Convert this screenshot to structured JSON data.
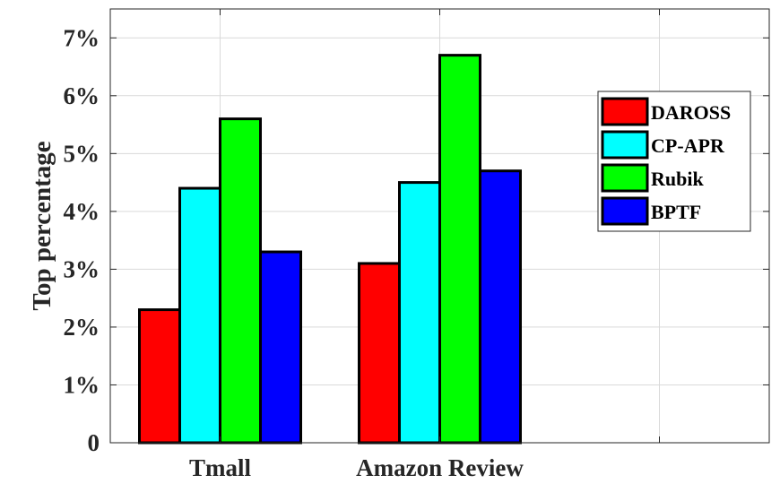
{
  "chart_data": {
    "type": "bar",
    "categories": [
      "Tmall",
      "Amazon Review",
      ""
    ],
    "series": [
      {
        "name": "DAROSS",
        "color": "#ff0000",
        "values": [
          2.3,
          3.1,
          0
        ]
      },
      {
        "name": "CP-APR",
        "color": "#00ffff",
        "values": [
          4.4,
          4.5,
          0
        ]
      },
      {
        "name": "Rubik",
        "color": "#00ff00",
        "values": [
          5.6,
          6.7,
          0
        ]
      },
      {
        "name": "BPTF",
        "color": "#0000ff",
        "values": [
          3.3,
          4.7,
          0
        ]
      }
    ],
    "ylabel": "Top percentage",
    "xlabel": "",
    "ylim": [
      0,
      7.5
    ],
    "yticks": [
      0,
      1,
      2,
      3,
      4,
      5,
      6,
      7
    ],
    "ytick_labels": [
      "0",
      "1%",
      "2%",
      "3%",
      "4%",
      "5%",
      "6%",
      "7%"
    ],
    "grid": true,
    "legend_position": "top-right"
  }
}
